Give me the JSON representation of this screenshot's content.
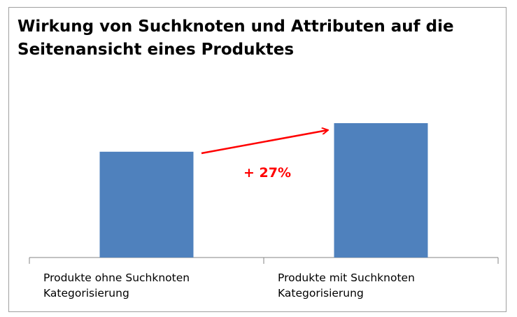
{
  "chart_data": {
    "type": "bar",
    "title": "Wirkung von Suchknoten und Attributen auf die Seitenansicht eines Produktes",
    "categories": [
      "Produkte ohne Suchknoten Kategorisierung",
      "Produkte mit Suchknoten Kategorisierung"
    ],
    "values": [
      100,
      127
    ],
    "color": "#4f81bd",
    "ylim": [
      0,
      127
    ],
    "annotation": "+ 27%",
    "annotation_color": "#ff0000"
  }
}
